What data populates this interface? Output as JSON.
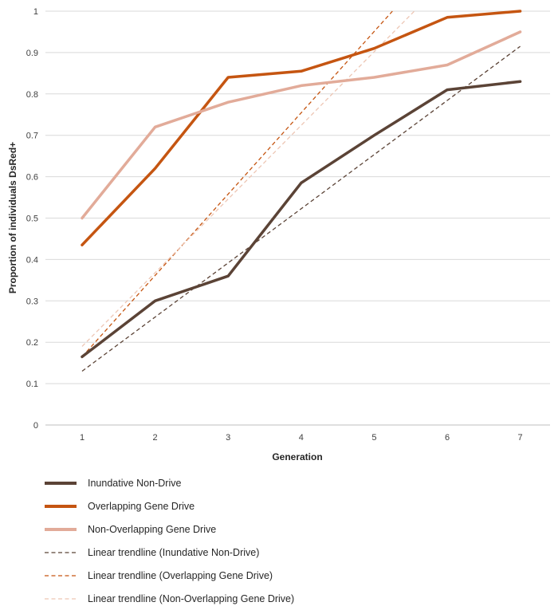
{
  "chart_data": {
    "type": "line",
    "title": "",
    "xlabel": "Generation",
    "ylabel": "Proportion of individuals DsRed+",
    "ylim": [
      0,
      1
    ],
    "grid": true,
    "legend_position": "bottom",
    "x_ticks": [
      1,
      2,
      3,
      4,
      5,
      6,
      7
    ],
    "y_ticks": [
      {
        "value": 0,
        "label": "0"
      },
      {
        "value": 0.1,
        "label": "0.1"
      },
      {
        "value": 0.2,
        "label": "0.2"
      },
      {
        "value": 0.3,
        "label": "0.3"
      },
      {
        "value": 0.4,
        "label": "0.4"
      },
      {
        "value": 0.5,
        "label": "0.5"
      },
      {
        "value": 0.6,
        "label": "0.6"
      },
      {
        "value": 0.7,
        "label": "0.7"
      },
      {
        "value": 0.8,
        "label": "0.8"
      },
      {
        "value": 0.9,
        "label": "0.9"
      },
      {
        "value": 1,
        "label": "1"
      }
    ],
    "series": [
      {
        "id": "inundative-non-drive",
        "name": "Inundative Non-Drive",
        "color": "#5B4336",
        "dash": false,
        "width": 3.5,
        "x": [
          1,
          2,
          3,
          4,
          5,
          6,
          7
        ],
        "y": [
          0.165,
          0.3,
          0.36,
          0.585,
          0.7,
          0.81,
          0.83
        ]
      },
      {
        "id": "overlapping-gene-drive",
        "name": "Overlapping Gene Drive",
        "color": "#C55511",
        "dash": false,
        "width": 3.5,
        "x": [
          1,
          2,
          3,
          4,
          5,
          6,
          7
        ],
        "y": [
          0.435,
          0.62,
          0.84,
          0.855,
          0.91,
          0.985,
          1.0
        ]
      },
      {
        "id": "non-overlapping-gene-drive",
        "name": "Non-Overlapping Gene Drive",
        "color": "#E2AB99",
        "dash": false,
        "width": 3.5,
        "x": [
          1,
          2,
          3,
          4,
          5,
          6,
          7
        ],
        "y": [
          0.5,
          0.72,
          0.78,
          0.82,
          0.84,
          0.87,
          0.95
        ]
      },
      {
        "id": "trend-inundative-non-drive",
        "name": "Linear trendline (Inundative Non-Drive)",
        "color": "#5B4336",
        "dash": true,
        "width": 1.3,
        "x": [
          1,
          7
        ],
        "y": [
          0.13,
          0.915
        ]
      },
      {
        "id": "trend-overlapping-gene-drive",
        "name": "Linear trendline (Overlapping Gene Drive)",
        "color": "#C55511",
        "dash": true,
        "width": 1.3,
        "x": [
          1,
          5.25
        ],
        "y": [
          0.165,
          1.0
        ]
      },
      {
        "id": "trend-non-overlapping-gene-drive",
        "name": "Linear trendline (Non-Overlapping Gene Drive)",
        "color": "#EDC6B4",
        "dash": true,
        "width": 1.3,
        "x": [
          1,
          5.55
        ],
        "y": [
          0.19,
          1.0
        ]
      }
    ]
  }
}
